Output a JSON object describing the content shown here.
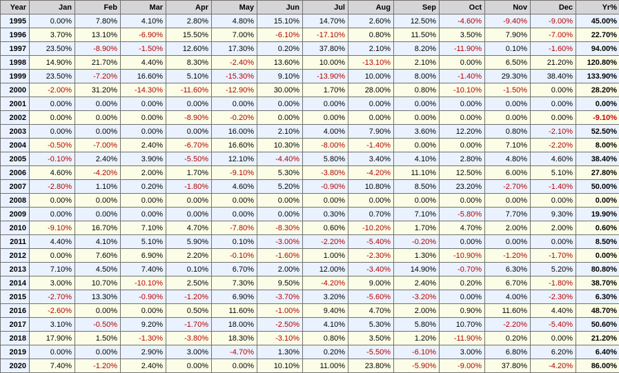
{
  "chart_data": {
    "type": "table",
    "columns": [
      "Year",
      "Jan",
      "Feb",
      "Mar",
      "Apr",
      "May",
      "Jun",
      "Jul",
      "Aug",
      "Sep",
      "Oct",
      "Nov",
      "Dec",
      "Yr%"
    ],
    "rows": [
      [
        "1995",
        "0.00%",
        "7.80%",
        "4.10%",
        "2.80%",
        "4.80%",
        "15.10%",
        "14.70%",
        "2.60%",
        "12.50%",
        "-4.60%",
        "-9.40%",
        "-9.00%",
        "45.00%"
      ],
      [
        "1996",
        "3.70%",
        "13.10%",
        "-6.90%",
        "15.50%",
        "7.00%",
        "-6.10%",
        "-17.10%",
        "0.80%",
        "11.50%",
        "3.50%",
        "7.90%",
        "-7.00%",
        "22.70%"
      ],
      [
        "1997",
        "23.50%",
        "-8.90%",
        "-1.50%",
        "12.60%",
        "17.30%",
        "0.20%",
        "37.80%",
        "2.10%",
        "8.20%",
        "-11.90%",
        "0.10%",
        "-1.60%",
        "94.00%"
      ],
      [
        "1998",
        "14.90%",
        "21.70%",
        "4.40%",
        "8.30%",
        "-2.40%",
        "13.60%",
        "10.00%",
        "-13.10%",
        "2.10%",
        "0.00%",
        "6.50%",
        "21.20%",
        "120.80%"
      ],
      [
        "1999",
        "23.50%",
        "-7.20%",
        "16.60%",
        "5.10%",
        "-15.30%",
        "9.10%",
        "-13.90%",
        "10.00%",
        "8.00%",
        "-1.40%",
        "29.30%",
        "38.40%",
        "133.90%"
      ],
      [
        "2000",
        "-2.00%",
        "31.20%",
        "-14.30%",
        "-11.60%",
        "-12.90%",
        "30.00%",
        "1.70%",
        "28.00%",
        "0.80%",
        "-10.10%",
        "-1.50%",
        "0.00%",
        "28.20%"
      ],
      [
        "2001",
        "0.00%",
        "0.00%",
        "0.00%",
        "0.00%",
        "0.00%",
        "0.00%",
        "0.00%",
        "0.00%",
        "0.00%",
        "0.00%",
        "0.00%",
        "0.00%",
        "0.00%"
      ],
      [
        "2002",
        "0.00%",
        "0.00%",
        "0.00%",
        "-8.90%",
        "-0.20%",
        "0.00%",
        "0.00%",
        "0.00%",
        "0.00%",
        "0.00%",
        "0.00%",
        "0.00%",
        "-9.10%"
      ],
      [
        "2003",
        "0.00%",
        "0.00%",
        "0.00%",
        "0.00%",
        "16.00%",
        "2.10%",
        "4.00%",
        "7.90%",
        "3.60%",
        "12.20%",
        "0.80%",
        "-2.10%",
        "52.50%"
      ],
      [
        "2004",
        "-0.50%",
        "-7.00%",
        "2.40%",
        "-6.70%",
        "16.60%",
        "10.30%",
        "-8.00%",
        "-1.40%",
        "0.00%",
        "0.00%",
        "7.10%",
        "-2.20%",
        "8.00%"
      ],
      [
        "2005",
        "-0.10%",
        "2.40%",
        "3.90%",
        "-5.50%",
        "12.10%",
        "-4.40%",
        "5.80%",
        "3.40%",
        "4.10%",
        "2.80%",
        "4.80%",
        "4.60%",
        "38.40%"
      ],
      [
        "2006",
        "4.60%",
        "-4.20%",
        "2.00%",
        "1.70%",
        "-9.10%",
        "5.30%",
        "-3.80%",
        "-4.20%",
        "11.10%",
        "12.50%",
        "6.00%",
        "5.10%",
        "27.80%"
      ],
      [
        "2007",
        "-2.80%",
        "1.10%",
        "0.20%",
        "-1.80%",
        "4.60%",
        "5.20%",
        "-0.90%",
        "10.80%",
        "8.50%",
        "23.20%",
        "-2.70%",
        "-1.40%",
        "50.00%"
      ],
      [
        "2008",
        "0.00%",
        "0.00%",
        "0.00%",
        "0.00%",
        "0.00%",
        "0.00%",
        "0.00%",
        "0.00%",
        "0.00%",
        "0.00%",
        "0.00%",
        "0.00%",
        "0.00%"
      ],
      [
        "2009",
        "0.00%",
        "0.00%",
        "0.00%",
        "0.00%",
        "0.00%",
        "0.00%",
        "0.30%",
        "0.70%",
        "7.10%",
        "-5.80%",
        "7.70%",
        "9.30%",
        "19.90%"
      ],
      [
        "2010",
        "-9.10%",
        "16.70%",
        "7.10%",
        "4.70%",
        "-7.80%",
        "-8.30%",
        "0.60%",
        "-10.20%",
        "1.70%",
        "4.70%",
        "2.00%",
        "2.00%",
        "0.60%"
      ],
      [
        "2011",
        "4.40%",
        "4.10%",
        "5.10%",
        "5.90%",
        "0.10%",
        "-3.00%",
        "-2.20%",
        "-5.40%",
        "-0.20%",
        "0.00%",
        "0.00%",
        "0.00%",
        "8.50%"
      ],
      [
        "2012",
        "0.00%",
        "7.60%",
        "6.90%",
        "2.20%",
        "-0.10%",
        "-1.60%",
        "1.00%",
        "-2.30%",
        "1.30%",
        "-10.90%",
        "-1.20%",
        "-1.70%",
        "0.00%"
      ],
      [
        "2013",
        "7.10%",
        "4.50%",
        "7.40%",
        "0.10%",
        "6.70%",
        "2.00%",
        "12.00%",
        "-3.40%",
        "14.90%",
        "-0.70%",
        "6.30%",
        "5.20%",
        "80.80%"
      ],
      [
        "2014",
        "3.00%",
        "10.70%",
        "-10.10%",
        "2.50%",
        "7.30%",
        "9.50%",
        "-4.20%",
        "9.00%",
        "2.40%",
        "0.20%",
        "6.70%",
        "-1.80%",
        "38.70%"
      ],
      [
        "2015",
        "-2.70%",
        "13.30%",
        "-0.90%",
        "-1.20%",
        "6.90%",
        "-3.70%",
        "3.20%",
        "-5.60%",
        "-3.20%",
        "0.00%",
        "4.00%",
        "-2.30%",
        "6.30%"
      ],
      [
        "2016",
        "-2.60%",
        "0.00%",
        "0.00%",
        "0.50%",
        "11.60%",
        "-1.00%",
        "9.40%",
        "4.70%",
        "2.00%",
        "0.90%",
        "11.60%",
        "4.40%",
        "48.70%"
      ],
      [
        "2017",
        "3.10%",
        "-0.50%",
        "9.20%",
        "-1.70%",
        "18.00%",
        "-2.50%",
        "4.10%",
        "5.30%",
        "5.80%",
        "10.70%",
        "-2.20%",
        "-5.40%",
        "50.60%"
      ],
      [
        "2018",
        "17.90%",
        "1.50%",
        "-1.30%",
        "-3.80%",
        "18.30%",
        "-3.10%",
        "0.80%",
        "3.50%",
        "1.20%",
        "-11.90%",
        "0.20%",
        "0.00%",
        "21.20%"
      ],
      [
        "2019",
        "0.00%",
        "0.00%",
        "2.90%",
        "3.00%",
        "-4.70%",
        "1.30%",
        "0.20%",
        "-5.50%",
        "-6.10%",
        "3.00%",
        "6.80%",
        "6.20%",
        "6.40%"
      ],
      [
        "2020",
        "7.40%",
        "-1.20%",
        "2.40%",
        "0.00%",
        "0.00%",
        "10.10%",
        "11.00%",
        "23.80%",
        "-5.90%",
        "-9.00%",
        "37.80%",
        "-4.20%",
        "86.00%"
      ]
    ],
    "negative_color": "#b40000",
    "header_bg": "#d5d5d5",
    "row_bg_a": "#eaf2ff",
    "row_bg_b": "#fbfde6"
  }
}
